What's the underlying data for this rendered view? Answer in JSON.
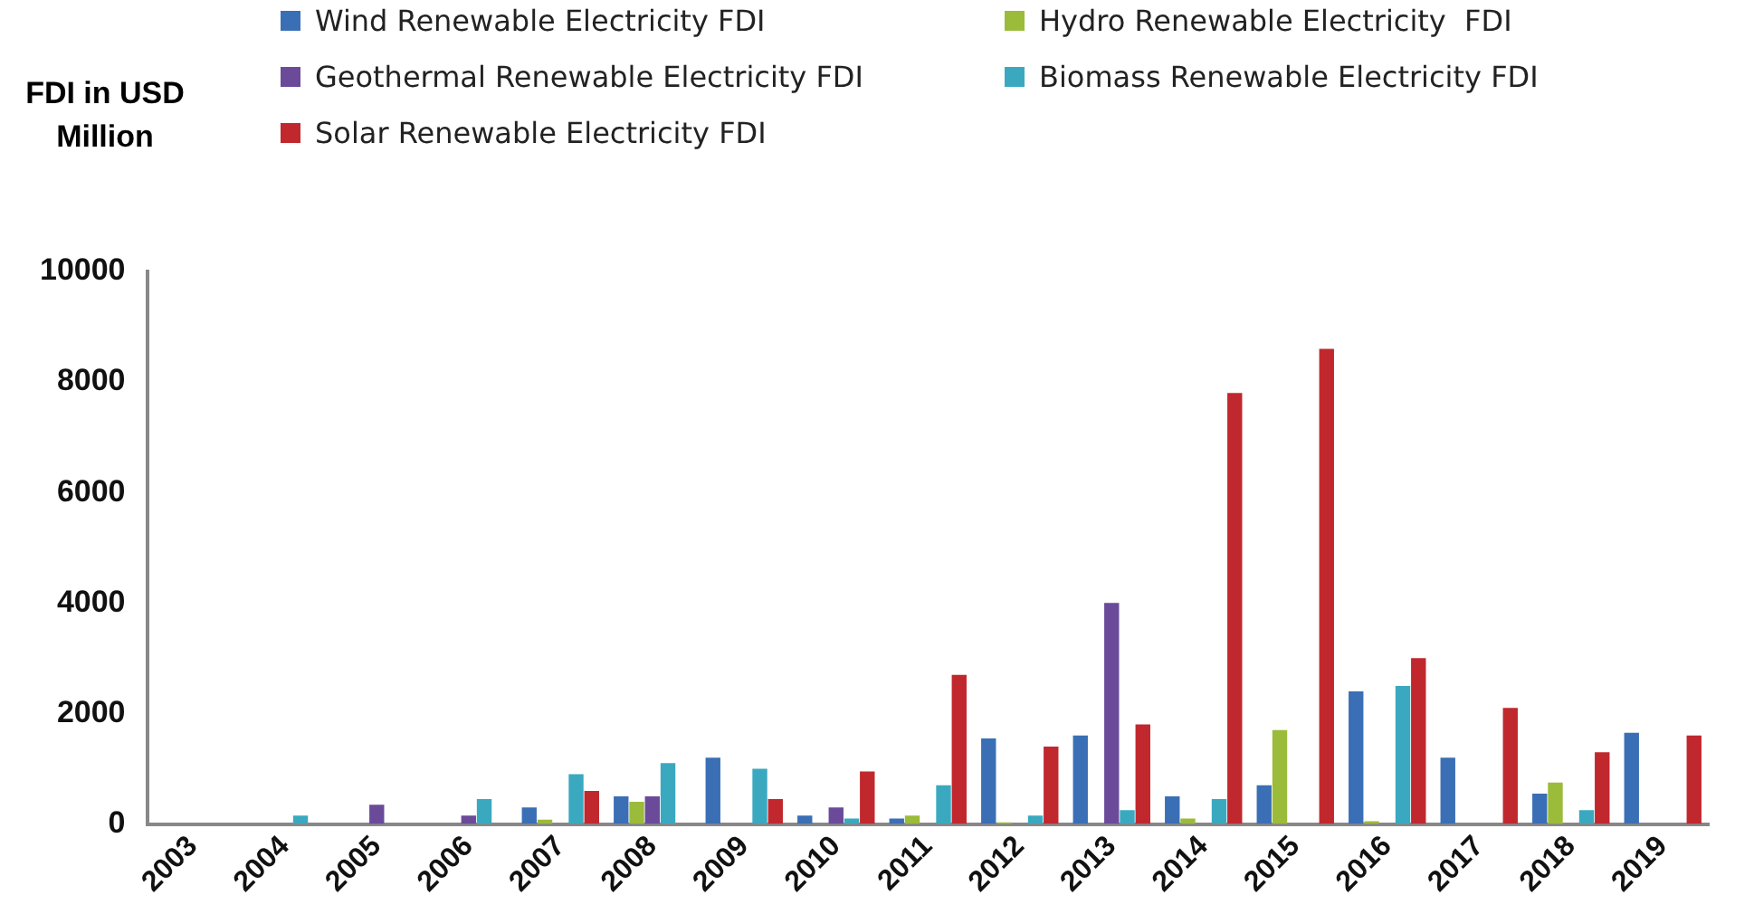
{
  "chart_data": {
    "type": "bar",
    "ylabel": "FDI in USD Million",
    "categories": [
      "2003",
      "2004",
      "2005",
      "2006",
      "2007",
      "2008",
      "2009",
      "2010",
      "2011",
      "2012",
      "2013",
      "2014",
      "2015",
      "2016",
      "2017",
      "2018",
      "2019"
    ],
    "series": [
      {
        "name": "Wind Renewable Electricity FDI",
        "color": "#3a6fb5",
        "values": [
          0,
          0,
          0,
          0,
          300,
          500,
          1200,
          150,
          100,
          1550,
          1600,
          500,
          700,
          2400,
          1200,
          550,
          1650
        ]
      },
      {
        "name": "Hydro Renewable Electricity  FDI",
        "color": "#9bbb3a",
        "values": [
          0,
          0,
          0,
          0,
          80,
          400,
          0,
          0,
          150,
          30,
          0,
          100,
          1700,
          50,
          0,
          750,
          0
        ]
      },
      {
        "name": "Geothermal Renewable Electricity FDI",
        "color": "#6b4a9a",
        "values": [
          0,
          0,
          350,
          150,
          0,
          500,
          0,
          300,
          0,
          0,
          4000,
          0,
          0,
          0,
          0,
          0,
          0
        ]
      },
      {
        "name": "Biomass Renewable Electricity FDI",
        "color": "#3aa9c0",
        "values": [
          0,
          150,
          0,
          450,
          900,
          1100,
          1000,
          100,
          700,
          150,
          250,
          450,
          0,
          2500,
          0,
          250,
          0
        ]
      },
      {
        "name": "Solar Renewable Electricity FDI",
        "color": "#c0282e",
        "values": [
          0,
          0,
          0,
          0,
          600,
          0,
          450,
          950,
          2700,
          1400,
          1800,
          7800,
          8600,
          3000,
          2100,
          1300,
          1600
        ]
      }
    ],
    "ylim": [
      0,
      10000
    ],
    "yticks": [
      0,
      2000,
      4000,
      6000,
      8000,
      10000
    ],
    "grid": false,
    "legend": "top"
  }
}
